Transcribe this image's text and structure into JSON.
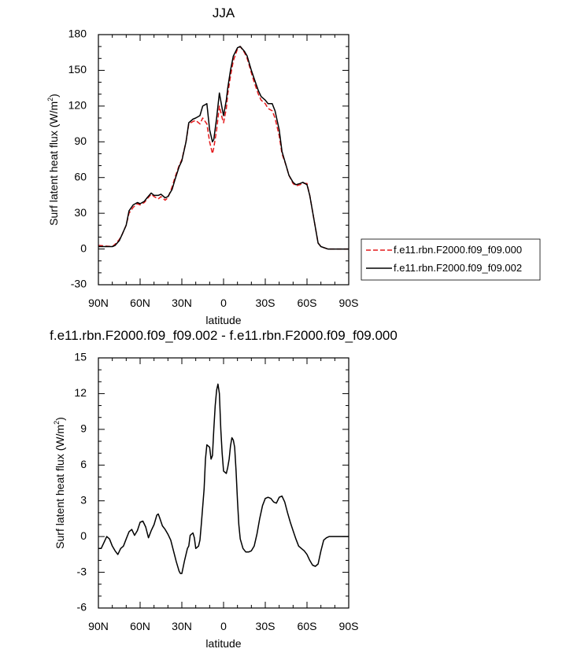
{
  "chart_data": [
    {
      "type": "line",
      "title": "JJA",
      "xlabel": "latitude",
      "ylabel": "Surf latent heat flux (W/m",
      "ylabel_sup": "2",
      "ylabel_close": ")",
      "xlim": [
        90,
        -90
      ],
      "ylim": [
        -30,
        180
      ],
      "xticks": [
        90,
        60,
        30,
        0,
        -30,
        -60,
        -90
      ],
      "xtick_labels": [
        "90N",
        "60N",
        "30N",
        "0",
        "30S",
        "60S",
        "90S"
      ],
      "yticks": [
        -30,
        0,
        30,
        60,
        90,
        120,
        150,
        180
      ],
      "ytick_labels": [
        "-30",
        "0",
        "30",
        "60",
        "90",
        "120",
        "150",
        "180"
      ],
      "legend_position": "right",
      "series": [
        {
          "name": "f.e11.rbn.F2000.f09_f09.000",
          "color": "#e41a1c",
          "dash": "dashed",
          "x": [
            90,
            85,
            80,
            78,
            75,
            73,
            70,
            68,
            65,
            62,
            60,
            57,
            55,
            52,
            50,
            47,
            45,
            42,
            40,
            37,
            35,
            32,
            30,
            27,
            25,
            22,
            20,
            17,
            15,
            12,
            10,
            8,
            7,
            5,
            3,
            1,
            0,
            -2,
            -3,
            -5,
            -7,
            -10,
            -12,
            -15,
            -17,
            -20,
            -22,
            -25,
            -27,
            -30,
            -32,
            -35,
            -37,
            -40,
            -42,
            -45,
            -47,
            -50,
            -52,
            -55,
            -57,
            -60,
            -62,
            -65,
            -68,
            -70,
            -75,
            -80,
            -85,
            -90
          ],
          "y": [
            3,
            2.5,
            2,
            4,
            8,
            12,
            20,
            30,
            35,
            38,
            37,
            39,
            42,
            46,
            44,
            42,
            44,
            41,
            43,
            52,
            60,
            70,
            75,
            90,
            105,
            107,
            108,
            105,
            110,
            105,
            90,
            80,
            85,
            100,
            120,
            110,
            106,
            118,
            130,
            145,
            158,
            168,
            170,
            165,
            160,
            148,
            140,
            130,
            125,
            122,
            118,
            116,
            110,
            95,
            80,
            70,
            62,
            55,
            53,
            54,
            55,
            55,
            45,
            25,
            5,
            2,
            0,
            0,
            0,
            0
          ]
        },
        {
          "name": "f.e11.rbn.F2000.f09_f09.002",
          "color": "#000000",
          "dash": "solid",
          "x": [
            90,
            85,
            80,
            78,
            75,
            73,
            70,
            68,
            65,
            62,
            60,
            57,
            55,
            52,
            50,
            47,
            45,
            42,
            40,
            37,
            35,
            32,
            30,
            27,
            25,
            22,
            20,
            17,
            15,
            12,
            10,
            8,
            7,
            5,
            3,
            1,
            0,
            -2,
            -3,
            -5,
            -7,
            -10,
            -12,
            -15,
            -17,
            -20,
            -22,
            -25,
            -27,
            -30,
            -32,
            -35,
            -37,
            -40,
            -42,
            -45,
            -47,
            -50,
            -52,
            -55,
            -57,
            -60,
            -62,
            -65,
            -68,
            -70,
            -75,
            -80,
            -85,
            -90
          ],
          "y": [
            2,
            2,
            2,
            3,
            7,
            12,
            20,
            32,
            37,
            39,
            38,
            40,
            43,
            47,
            45,
            45,
            46,
            43,
            44,
            50,
            58,
            69,
            74,
            90,
            106,
            109,
            110,
            112,
            120,
            122,
            100,
            90,
            92,
            110,
            131,
            118,
            112,
            125,
            135,
            150,
            162,
            169,
            170,
            166,
            162,
            150,
            143,
            133,
            128,
            125,
            122,
            122,
            116,
            100,
            82,
            70,
            62,
            56,
            54,
            55,
            56,
            54,
            45,
            25,
            5,
            2,
            0,
            0,
            0,
            0
          ]
        }
      ]
    },
    {
      "type": "line",
      "title": "f.e11.rbn.F2000.f09_f09.002 - f.e11.rbn.F2000.f09_f09.000",
      "xlabel": "latitude",
      "ylabel": "Surf latent heat flux (W/m",
      "ylabel_sup": "2",
      "ylabel_close": ")",
      "xlim": [
        90,
        -90
      ],
      "ylim": [
        -6,
        15
      ],
      "xticks": [
        90,
        60,
        30,
        0,
        -30,
        -60,
        -90
      ],
      "xtick_labels": [
        "90N",
        "60N",
        "30N",
        "0",
        "30S",
        "60S",
        "90S"
      ],
      "yticks": [
        -6,
        -3,
        0,
        3,
        6,
        9,
        12,
        15
      ],
      "ytick_labels": [
        "-6",
        "-3",
        "0",
        "3",
        "6",
        "9",
        "12",
        "15"
      ],
      "series": [
        {
          "color": "#000000",
          "dash": "solid",
          "x": [
            90,
            88,
            86,
            84,
            82,
            80,
            78,
            76,
            74,
            72,
            70,
            68,
            66,
            64,
            62,
            60,
            58,
            56,
            54,
            52,
            50,
            48,
            47,
            46,
            44,
            42,
            40,
            38,
            36,
            34,
            32,
            31,
            30,
            28,
            26,
            25,
            24,
            22,
            21,
            20,
            18,
            17,
            16,
            14,
            13,
            12,
            10,
            9,
            8,
            7,
            6,
            5,
            4,
            3,
            2,
            1,
            0,
            -2,
            -3,
            -4,
            -5,
            -6,
            -7,
            -8,
            -9,
            -10,
            -11,
            -12,
            -14,
            -16,
            -18,
            -20,
            -22,
            -24,
            -26,
            -28,
            -30,
            -32,
            -34,
            -36,
            -38,
            -40,
            -42,
            -44,
            -46,
            -48,
            -50,
            -52,
            -54,
            -56,
            -58,
            -60,
            -62,
            -64,
            -66,
            -68,
            -70,
            -72,
            -74,
            -76,
            -78,
            -80,
            -85,
            -90
          ],
          "y": [
            -1,
            -1,
            -0.5,
            0,
            -0.2,
            -0.8,
            -1.2,
            -1.5,
            -1,
            -0.8,
            -0.2,
            0.4,
            0.6,
            0.1,
            0.5,
            1.2,
            1.3,
            0.8,
            -0.1,
            0.5,
            1,
            1.8,
            1.9,
            1.6,
            0.9,
            0.6,
            0.2,
            -0.3,
            -1.2,
            -2.1,
            -2.9,
            -3.1,
            -3.1,
            -2,
            -1,
            -0.8,
            0.1,
            0.3,
            -0.1,
            -1,
            -0.8,
            -0.3,
            1,
            4,
            6.5,
            7.7,
            7.5,
            6.5,
            6.8,
            9,
            11,
            12.3,
            12.8,
            12,
            9,
            7,
            5.5,
            5.3,
            5.8,
            6.5,
            7.6,
            8.3,
            8.1,
            7.5,
            5.5,
            3,
            1,
            -0.2,
            -1,
            -1.3,
            -1.3,
            -1.2,
            -0.8,
            0.2,
            1.5,
            2.6,
            3.2,
            3.3,
            3.2,
            2.9,
            2.8,
            3.3,
            3.4,
            2.9,
            2,
            1.2,
            0.5,
            -0.2,
            -0.8,
            -1,
            -1.2,
            -1.5,
            -2,
            -2.4,
            -2.5,
            -2.3,
            -1.2,
            -0.3,
            -0.1,
            0,
            0,
            0,
            0,
            0
          ]
        }
      ]
    }
  ]
}
